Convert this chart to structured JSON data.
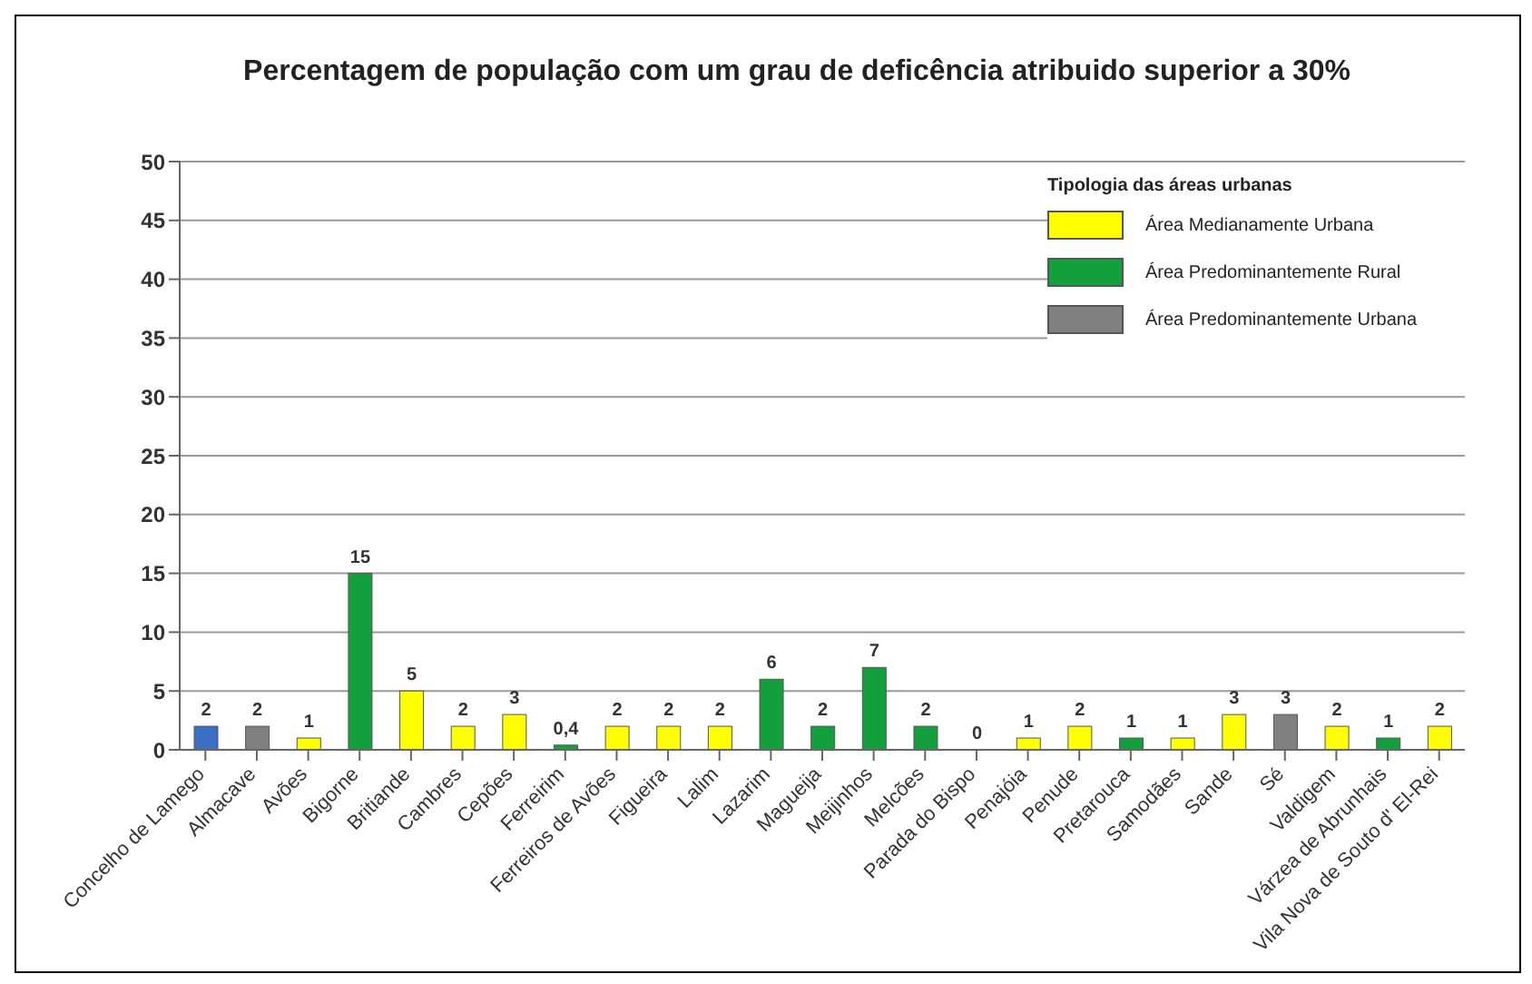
{
  "chart_data": {
    "type": "bar",
    "title": "Percentagem de população com um grau de deficência atribuido superior a 30%",
    "legend_title": "Tipologia das áreas urbanas",
    "categories": [
      "Concelho de Lamego",
      "Almacave",
      "Avões",
      "Bigorne",
      "Britiande",
      "Cambres",
      "Cepões",
      "Ferreirim",
      "Ferreiros de Avões",
      "Figueira",
      "Lalim",
      "Lazarim",
      "Magueija",
      "Meijinhos",
      "Melcões",
      "Parada do Bispo",
      "Penajóia",
      "Penude",
      "Pretarouca",
      "Samodães",
      "Sande",
      "Sé",
      "Valdigem",
      "Várzea de Abrunhais",
      "Vila Nova de Souto d' El-Rei"
    ],
    "series": [
      {
        "color": "#3a6fc4",
        "values": [
          2,
          null,
          null,
          null,
          null,
          null,
          null,
          null,
          null,
          null,
          null,
          null,
          null,
          null,
          null,
          null,
          null,
          null,
          null,
          null,
          null,
          null,
          null,
          null,
          null
        ],
        "value_labels": [
          "2",
          null,
          null,
          null,
          null,
          null,
          null,
          null,
          null,
          null,
          null,
          null,
          null,
          null,
          null,
          null,
          null,
          null,
          null,
          null,
          null,
          null,
          null,
          null,
          null
        ]
      },
      {
        "name": "Área Medianamente Urbana",
        "color": "#ffff00",
        "values": [
          null,
          null,
          1,
          null,
          5,
          2,
          3,
          null,
          2,
          2,
          2,
          null,
          null,
          null,
          null,
          null,
          1,
          2,
          null,
          1,
          3,
          null,
          2,
          null,
          2
        ],
        "value_labels": [
          null,
          null,
          "1",
          null,
          "5",
          "2",
          "3",
          null,
          "2",
          "2",
          "2",
          null,
          null,
          null,
          null,
          null,
          "1",
          "2",
          null,
          "1",
          "3",
          null,
          "2",
          null,
          "2"
        ]
      },
      {
        "name": "Área Predominantemente Rural",
        "color": "#13a03c",
        "values": [
          null,
          null,
          null,
          15,
          null,
          null,
          null,
          0.4,
          null,
          null,
          null,
          6,
          2,
          7,
          2,
          0,
          null,
          null,
          1,
          null,
          null,
          null,
          null,
          1,
          null
        ],
        "value_labels": [
          null,
          null,
          null,
          "15",
          null,
          null,
          null,
          "0,4",
          null,
          null,
          null,
          "6",
          "2",
          "7",
          "2",
          "0",
          null,
          null,
          "1",
          null,
          null,
          null,
          null,
          "1",
          null
        ]
      },
      {
        "name": "Área Predominantemente Urbana",
        "color": "#808080",
        "values": [
          null,
          2,
          null,
          null,
          null,
          null,
          null,
          null,
          null,
          null,
          null,
          null,
          null,
          null,
          null,
          null,
          null,
          null,
          null,
          null,
          null,
          3,
          null,
          null,
          null
        ],
        "value_labels": [
          null,
          "2",
          null,
          null,
          null,
          null,
          null,
          null,
          null,
          null,
          null,
          null,
          null,
          null,
          null,
          null,
          null,
          null,
          null,
          null,
          null,
          "3",
          null,
          null,
          null
        ]
      }
    ],
    "stacked": true,
    "ylim": [
      0,
      50
    ],
    "yticks": [
      0,
      5,
      10,
      15,
      20,
      25,
      30,
      35,
      40,
      45,
      50
    ],
    "grid": "y",
    "legend": "top right"
  }
}
